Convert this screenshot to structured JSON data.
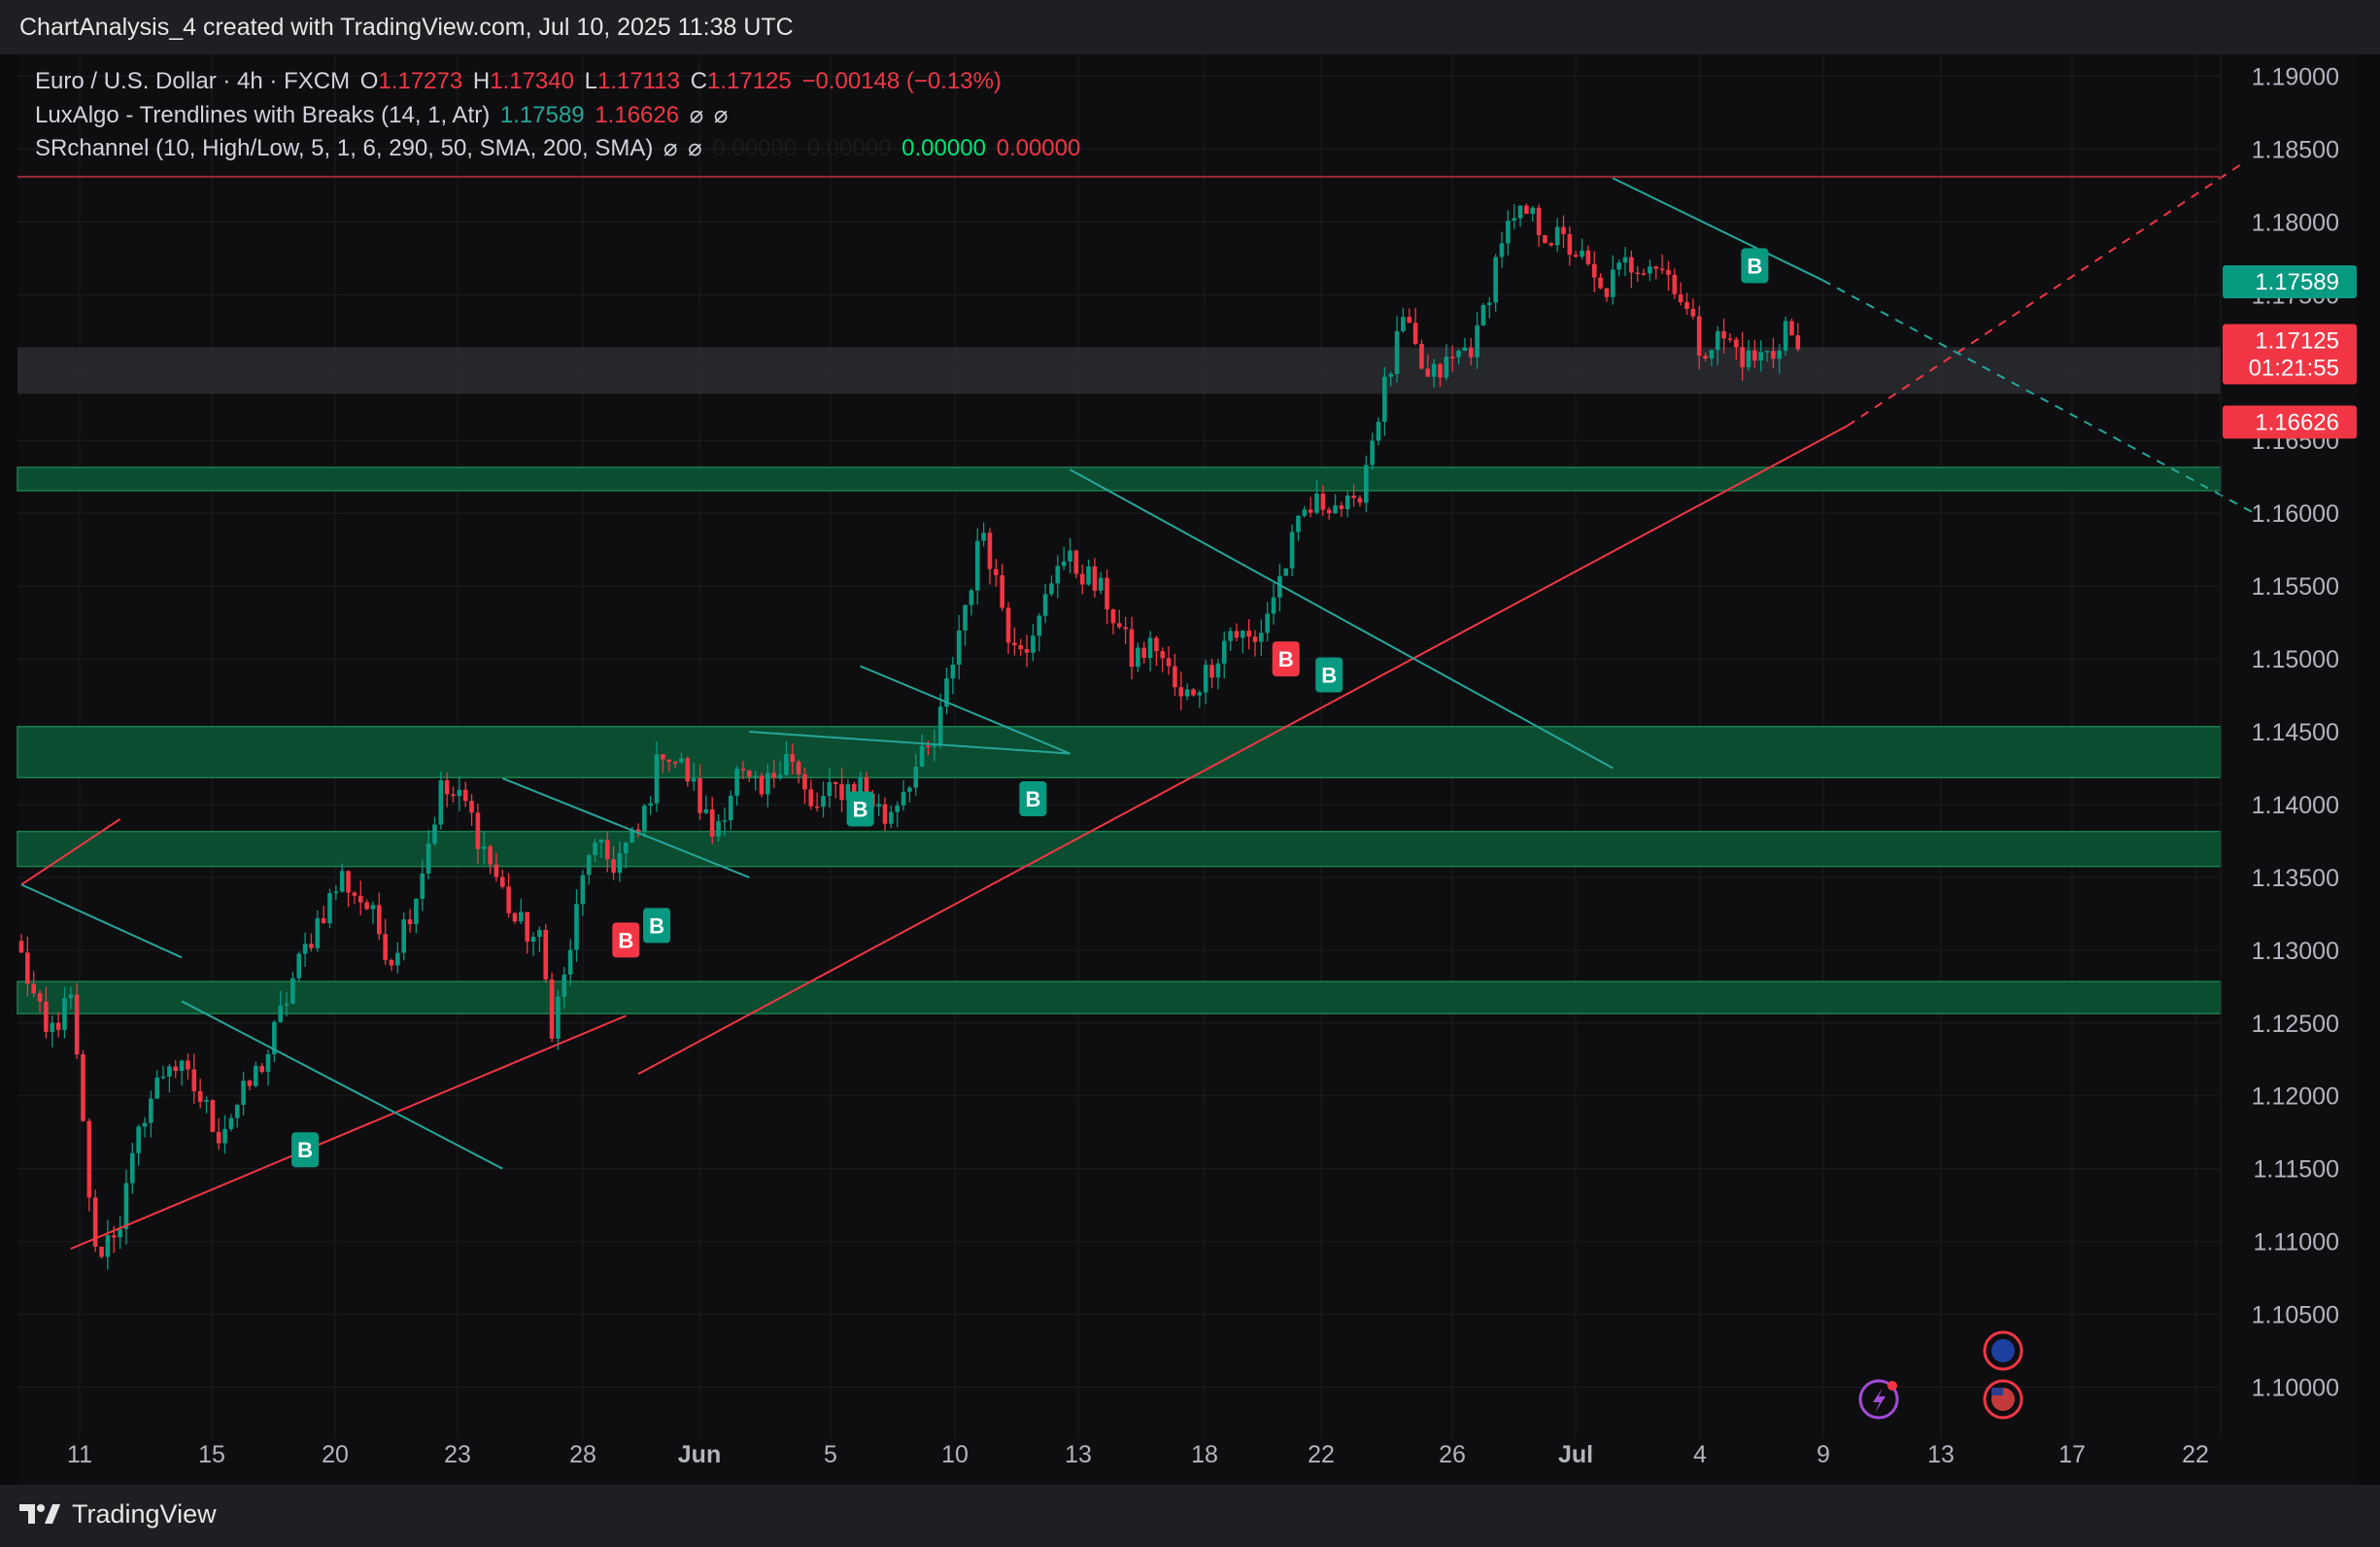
{
  "header": {
    "title": "ChartAnalysis_4 created with TradingView.com, Jul 10, 2025 11:38 UTC"
  },
  "legend": {
    "symbol": "Euro / U.S. Dollar · 4h · FXCM",
    "o_label": "O",
    "o_value": "1.17273",
    "h_label": "H",
    "h_value": "1.17340",
    "l_label": "L",
    "l_value": "1.17113",
    "c_label": "C",
    "c_value": "1.17125",
    "change": "−0.00148 (−0.13%)",
    "ind1_name": "LuxAlgo - Trendlines with Breaks (14, 1, Atr)",
    "ind1_v1": "1.17589",
    "ind1_v2": "1.16626",
    "ind2_name": "SRchannel (10, High/Low, 5, 1, 6, 290, 50, SMA, 200, SMA)",
    "ind2_v1": "0.00000",
    "ind2_v2": "0.00000",
    "ind2_v3": "0.00000",
    "ind2_v4": "0.00000",
    "hidden_icon": "⌀"
  },
  "footer": {
    "brand": "TradingView"
  },
  "chart_data": {
    "type": "candlestick",
    "symbol": "EURUSD",
    "timeframe": "4h",
    "ylim": [
      1.0965,
      1.1915
    ],
    "y_ticks": [
      "1.19000",
      "1.18500",
      "1.18000",
      "1.17500",
      "1.17000",
      "1.16500",
      "1.16000",
      "1.15500",
      "1.15000",
      "1.14500",
      "1.14000",
      "1.13500",
      "1.13000",
      "1.12500",
      "1.12000",
      "1.11500",
      "1.11000",
      "1.10500",
      "1.10000"
    ],
    "x_ticks": [
      {
        "label": "11",
        "bold": false
      },
      {
        "label": "15",
        "bold": false
      },
      {
        "label": "20",
        "bold": false
      },
      {
        "label": "23",
        "bold": false
      },
      {
        "label": "28",
        "bold": false
      },
      {
        "label": "Jun",
        "bold": true
      },
      {
        "label": "5",
        "bold": false
      },
      {
        "label": "10",
        "bold": false
      },
      {
        "label": "13",
        "bold": false
      },
      {
        "label": "18",
        "bold": false
      },
      {
        "label": "22",
        "bold": false
      },
      {
        "label": "26",
        "bold": false
      },
      {
        "label": "Jul",
        "bold": true
      },
      {
        "label": "4",
        "bold": false
      },
      {
        "label": "9",
        "bold": false
      },
      {
        "label": "13",
        "bold": false
      },
      {
        "label": "17",
        "bold": false
      },
      {
        "label": "22",
        "bold": false
      }
    ],
    "price_tags": [
      {
        "label": "1.17589",
        "sub": "",
        "price": 1.17589,
        "color": "#089981"
      },
      {
        "label": "1.17125",
        "sub": "01:21:55",
        "price": 1.17125,
        "color": "#f23645"
      },
      {
        "label": "1.16626",
        "sub": "",
        "price": 1.16626,
        "color": "#f23645"
      }
    ],
    "resistance_line": 1.1831,
    "gray_zone": [
      1.1682,
      1.1714
    ],
    "sr_zones": [
      [
        1.16155,
        1.16315
      ],
      [
        1.14185,
        1.14535
      ],
      [
        1.13575,
        1.13815
      ],
      [
        1.12565,
        1.12785
      ]
    ],
    "key_points": [
      [
        0,
        1.1295
      ],
      [
        4,
        1.124
      ],
      [
        8,
        1.1265
      ],
      [
        12,
        1.109
      ],
      [
        16,
        1.1115
      ],
      [
        20,
        1.119
      ],
      [
        24,
        1.1225
      ],
      [
        28,
        1.1205
      ],
      [
        32,
        1.1175
      ],
      [
        36,
        1.12
      ],
      [
        40,
        1.123
      ],
      [
        44,
        1.128
      ],
      [
        48,
        1.132
      ],
      [
        52,
        1.135
      ],
      [
        56,
        1.133
      ],
      [
        60,
        1.1295
      ],
      [
        64,
        1.134
      ],
      [
        68,
        1.141
      ],
      [
        72,
        1.14
      ],
      [
        76,
        1.136
      ],
      [
        80,
        1.132
      ],
      [
        84,
        1.1305
      ],
      [
        86,
        1.125
      ],
      [
        88,
        1.128
      ],
      [
        92,
        1.137
      ],
      [
        96,
        1.136
      ],
      [
        100,
        1.138
      ],
      [
        104,
        1.144
      ],
      [
        108,
        1.142
      ],
      [
        112,
        1.138
      ],
      [
        116,
        1.142
      ],
      [
        120,
        1.1405
      ],
      [
        124,
        1.144
      ],
      [
        128,
        1.1395
      ],
      [
        132,
        1.141
      ],
      [
        136,
        1.1415
      ],
      [
        140,
        1.139
      ],
      [
        144,
        1.142
      ],
      [
        148,
        1.144
      ],
      [
        152,
        1.152
      ],
      [
        156,
        1.159
      ],
      [
        160,
        1.152
      ],
      [
        164,
        1.151
      ],
      [
        168,
        1.157
      ],
      [
        172,
        1.156
      ],
      [
        176,
        1.154
      ],
      [
        180,
        1.15
      ],
      [
        184,
        1.151
      ],
      [
        188,
        1.147
      ],
      [
        192,
        1.149
      ],
      [
        196,
        1.152
      ],
      [
        200,
        1.151
      ],
      [
        204,
        1.1555
      ],
      [
        208,
        1.16
      ],
      [
        212,
        1.161
      ],
      [
        216,
        1.16
      ],
      [
        220,
        1.167
      ],
      [
        224,
        1.173
      ],
      [
        228,
        1.169
      ],
      [
        232,
        1.1705
      ],
      [
        236,
        1.172
      ],
      [
        240,
        1.179
      ],
      [
        244,
        1.1805
      ],
      [
        248,
        1.179
      ],
      [
        252,
        1.178
      ],
      [
        256,
        1.175
      ],
      [
        260,
        1.177
      ],
      [
        264,
        1.1775
      ],
      [
        268,
        1.176
      ],
      [
        272,
        1.1715
      ],
      [
        276,
        1.172
      ],
      [
        280,
        1.1705
      ],
      [
        284,
        1.171
      ],
      [
        286,
        1.173
      ],
      [
        288,
        1.1712
      ]
    ],
    "trendlines": [
      {
        "color": "#f23645",
        "dashed": false,
        "x1": 8,
        "p1": 1.1095,
        "x2": 98,
        "p2": 1.1255
      },
      {
        "color": "#f23645",
        "dashed": false,
        "x1": 100,
        "p1": 1.1215,
        "x2": 296,
        "p2": 1.166
      },
      {
        "color": "#f23645",
        "dashed": true,
        "x1": 296,
        "p1": 1.166,
        "x2": 360,
        "p2": 1.184
      },
      {
        "color": "#f23645",
        "dashed": false,
        "x1": 0,
        "p1": 1.1345,
        "x2": 16,
        "p2": 1.139
      },
      {
        "color": "#26a69a",
        "dashed": false,
        "x1": 0,
        "p1": 1.1345,
        "x2": 26,
        "p2": 1.1295
      },
      {
        "color": "#26a69a",
        "dashed": false,
        "x1": 26,
        "p1": 1.1265,
        "x2": 78,
        "p2": 1.115
      },
      {
        "color": "#26a69a",
        "dashed": false,
        "x1": 78,
        "p1": 1.1418,
        "x2": 118,
        "p2": 1.135
      },
      {
        "color": "#26a69a",
        "dashed": false,
        "x1": 118,
        "p1": 1.145,
        "x2": 170,
        "p2": 1.1435
      },
      {
        "color": "#26a69a",
        "dashed": false,
        "x1": 136,
        "p1": 1.1495,
        "x2": 170,
        "p2": 1.1435
      },
      {
        "color": "#26a69a",
        "dashed": false,
        "x1": 170,
        "p1": 1.163,
        "x2": 258,
        "p2": 1.1425
      },
      {
        "color": "#26a69a",
        "dashed": false,
        "x1": 258,
        "p1": 1.183,
        "x2": 292,
        "p2": 1.176
      },
      {
        "color": "#26a69a",
        "dashed": true,
        "x1": 292,
        "p1": 1.176,
        "x2": 362,
        "p2": 1.16
      }
    ],
    "signals": [
      {
        "label": "B",
        "type": "buy",
        "x": 46,
        "price": 1.1163
      },
      {
        "label": "B",
        "type": "sell",
        "x": 98,
        "price": 1.1307
      },
      {
        "label": "B",
        "type": "buy",
        "x": 103,
        "price": 1.1317
      },
      {
        "label": "B",
        "type": "buy",
        "x": 136,
        "price": 1.1397
      },
      {
        "label": "B",
        "type": "buy",
        "x": 164,
        "price": 1.1404
      },
      {
        "label": "B",
        "type": "sell",
        "x": 205,
        "price": 1.15
      },
      {
        "label": "B",
        "type": "buy",
        "x": 212,
        "price": 1.1489
      },
      {
        "label": "B",
        "type": "buy",
        "x": 281,
        "price": 1.177
      }
    ],
    "colors": {
      "up": "#089981",
      "down": "#f23645",
      "zone": "#0b4d30",
      "zone_border": "#1a7f4d"
    }
  }
}
